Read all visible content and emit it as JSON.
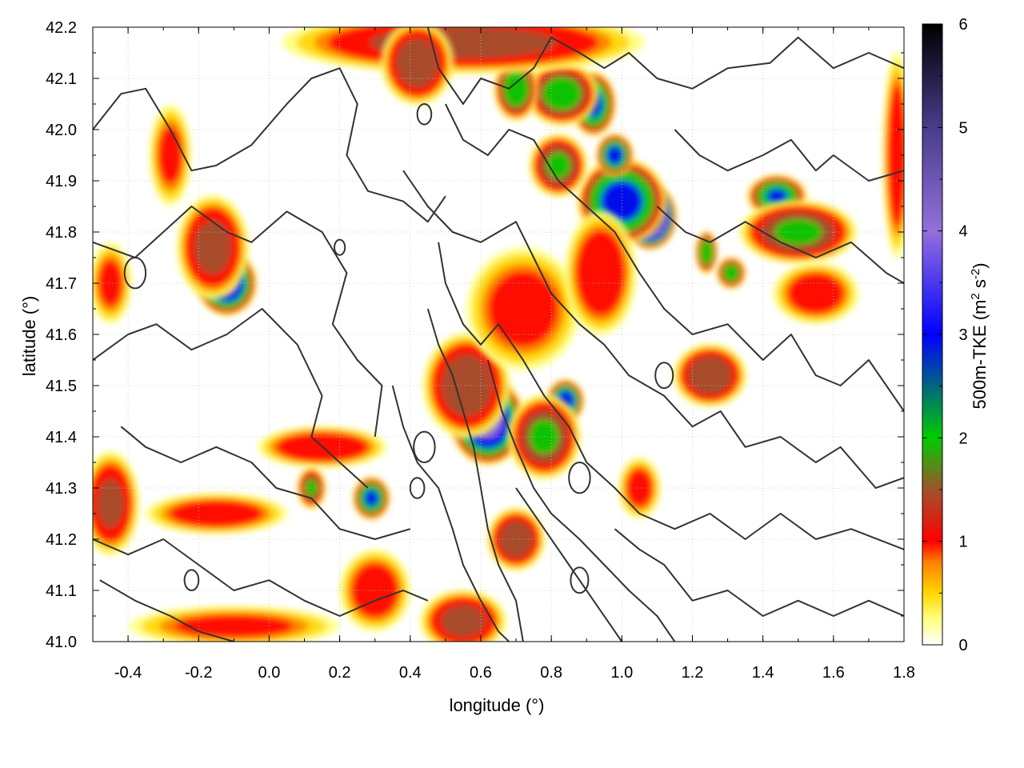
{
  "chart_data": {
    "type": "heatmap",
    "title": "",
    "xlabel": "longitude (°)",
    "ylabel": "latitude (°)",
    "colorbar_label_main": "500m-TKE (m",
    "colorbar_label_sup1": "2",
    "colorbar_label_mid": " s",
    "colorbar_label_sup2": "-2",
    "colorbar_label_end": ")",
    "xlim": [
      -0.5,
      1.8
    ],
    "ylim": [
      41.0,
      42.2
    ],
    "clim": [
      0,
      6
    ],
    "x_ticks": [
      "-0.4",
      "-0.2",
      "0.0",
      "0.2",
      "0.4",
      "0.6",
      "0.8",
      "1.0",
      "1.2",
      "1.4",
      "1.6",
      "1.8"
    ],
    "y_ticks": [
      "41.0",
      "41.1",
      "41.2",
      "41.3",
      "41.4",
      "41.5",
      "41.6",
      "41.7",
      "41.8",
      "41.9",
      "42.0",
      "42.1",
      "42.2"
    ],
    "colorbar_ticks": [
      "0",
      "1",
      "2",
      "3",
      "4",
      "5",
      "6"
    ],
    "grid": true,
    "colormap": [
      {
        "v": 0.0,
        "color": "#ffffff"
      },
      {
        "v": 0.25,
        "color": "#ffff80"
      },
      {
        "v": 0.5,
        "color": "#ffd700"
      },
      {
        "v": 0.8,
        "color": "#ff7f00"
      },
      {
        "v": 1.0,
        "color": "#ff0000"
      },
      {
        "v": 1.5,
        "color": "#a0522d"
      },
      {
        "v": 2.0,
        "color": "#00cc00"
      },
      {
        "v": 3.0,
        "color": "#0000ff"
      },
      {
        "v": 4.0,
        "color": "#9370db"
      },
      {
        "v": 5.0,
        "color": "#483d8b"
      },
      {
        "v": 6.0,
        "color": "#000000"
      }
    ],
    "hotspots": [
      {
        "lon": 1.08,
        "lat": 41.83,
        "tke": 6.0,
        "slon": 0.035,
        "slat": 0.03
      },
      {
        "lon": 1.0,
        "lat": 41.86,
        "tke": 3.4,
        "slon": 0.06,
        "slat": 0.04
      },
      {
        "lon": 0.62,
        "lat": 41.43,
        "tke": 4.3,
        "slon": 0.05,
        "slat": 0.04
      },
      {
        "lon": 0.56,
        "lat": 41.5,
        "tke": 1.8,
        "slon": 0.06,
        "slat": 0.05
      },
      {
        "lon": -0.12,
        "lat": 41.7,
        "tke": 4.0,
        "slon": 0.04,
        "slat": 0.03
      },
      {
        "lon": -0.16,
        "lat": 41.77,
        "tke": 1.6,
        "slon": 0.05,
        "slat": 0.05
      },
      {
        "lon": 0.84,
        "lat": 41.47,
        "tke": 3.5,
        "slon": 0.025,
        "slat": 0.02
      },
      {
        "lon": 0.78,
        "lat": 41.4,
        "tke": 2.0,
        "slon": 0.05,
        "slat": 0.04
      },
      {
        "lon": 0.29,
        "lat": 41.28,
        "tke": 3.1,
        "slon": 0.025,
        "slat": 0.02
      },
      {
        "lon": 0.92,
        "lat": 42.05,
        "tke": 3.2,
        "slon": 0.03,
        "slat": 0.03
      },
      {
        "lon": 0.98,
        "lat": 41.95,
        "tke": 3.3,
        "slon": 0.025,
        "slat": 0.02
      },
      {
        "lon": 0.83,
        "lat": 42.07,
        "tke": 2.3,
        "slon": 0.05,
        "slat": 0.03
      },
      {
        "lon": 0.7,
        "lat": 42.08,
        "tke": 2.5,
        "slon": 0.03,
        "slat": 0.03
      },
      {
        "lon": 0.82,
        "lat": 41.93,
        "tke": 2.0,
        "slon": 0.04,
        "slat": 0.03
      },
      {
        "lon": 1.44,
        "lat": 41.87,
        "tke": 3.0,
        "slon": 0.04,
        "slat": 0.02
      },
      {
        "lon": 1.5,
        "lat": 41.8,
        "tke": 2.0,
        "slon": 0.08,
        "slat": 0.03
      },
      {
        "lon": 1.25,
        "lat": 41.52,
        "tke": 1.9,
        "slon": 0.05,
        "slat": 0.03
      },
      {
        "lon": 1.24,
        "lat": 41.76,
        "tke": 2.6,
        "slon": 0.015,
        "slat": 0.02
      },
      {
        "lon": 1.31,
        "lat": 41.72,
        "tke": 2.4,
        "slon": 0.02,
        "slat": 0.015
      },
      {
        "lon": 0.55,
        "lat": 42.17,
        "tke": 1.6,
        "slon": 0.25,
        "slat": 0.03
      },
      {
        "lon": 0.42,
        "lat": 42.13,
        "tke": 1.8,
        "slon": 0.05,
        "slat": 0.04
      },
      {
        "lon": 0.15,
        "lat": 41.38,
        "tke": 1.4,
        "slon": 0.09,
        "slat": 0.02
      },
      {
        "lon": -0.45,
        "lat": 41.27,
        "tke": 1.5,
        "slon": 0.04,
        "slat": 0.05
      },
      {
        "lon": -0.15,
        "lat": 41.25,
        "tke": 1.2,
        "slon": 0.1,
        "slat": 0.02
      },
      {
        "lon": -0.1,
        "lat": 41.03,
        "tke": 1.0,
        "slon": 0.15,
        "slat": 0.02
      },
      {
        "lon": 0.55,
        "lat": 41.04,
        "tke": 1.6,
        "slon": 0.06,
        "slat": 0.03
      },
      {
        "lon": 0.3,
        "lat": 41.1,
        "tke": 1.2,
        "slon": 0.05,
        "slat": 0.04
      },
      {
        "lon": 0.72,
        "lat": 41.65,
        "tke": 1.1,
        "slon": 0.08,
        "slat": 0.06
      },
      {
        "lon": 0.94,
        "lat": 41.72,
        "tke": 1.3,
        "slon": 0.05,
        "slat": 0.06
      },
      {
        "lon": 1.78,
        "lat": 41.95,
        "tke": 1.3,
        "slon": 0.02,
        "slat": 0.1
      },
      {
        "lon": -0.28,
        "lat": 41.95,
        "tke": 1.0,
        "slon": 0.03,
        "slat": 0.05
      },
      {
        "lon": -0.45,
        "lat": 41.7,
        "tke": 1.0,
        "slon": 0.03,
        "slat": 0.04
      },
      {
        "lon": 0.12,
        "lat": 41.3,
        "tke": 2.0,
        "slon": 0.02,
        "slat": 0.02
      },
      {
        "lon": 0.7,
        "lat": 41.2,
        "tke": 1.8,
        "slon": 0.04,
        "slat": 0.03
      },
      {
        "lon": 1.55,
        "lat": 41.68,
        "tke": 1.2,
        "slon": 0.06,
        "slat": 0.03
      },
      {
        "lon": 1.05,
        "lat": 41.3,
        "tke": 1.1,
        "slon": 0.03,
        "slat": 0.03
      }
    ],
    "contours": [
      [
        [
          -0.5,
          42.0
        ],
        [
          -0.42,
          42.07
        ],
        [
          -0.35,
          42.08
        ],
        [
          -0.28,
          42.0
        ],
        [
          -0.22,
          41.92
        ],
        [
          -0.15,
          41.93
        ],
        [
          -0.05,
          41.97
        ],
        [
          0.05,
          42.05
        ],
        [
          0.12,
          42.1
        ],
        [
          0.2,
          42.12
        ],
        [
          0.25,
          42.05
        ],
        [
          0.22,
          41.95
        ],
        [
          0.28,
          41.88
        ],
        [
          0.38,
          41.86
        ],
        [
          0.45,
          41.82
        ],
        [
          0.5,
          41.87
        ]
      ],
      [
        [
          -0.5,
          41.78
        ],
        [
          -0.38,
          41.75
        ],
        [
          -0.3,
          41.8
        ],
        [
          -0.22,
          41.85
        ],
        [
          -0.12,
          41.8
        ],
        [
          -0.05,
          41.78
        ],
        [
          0.05,
          41.84
        ],
        [
          0.15,
          41.8
        ],
        [
          0.22,
          41.72
        ],
        [
          0.18,
          41.62
        ],
        [
          0.25,
          41.55
        ],
        [
          0.32,
          41.5
        ],
        [
          0.3,
          41.4
        ]
      ],
      [
        [
          -0.5,
          41.55
        ],
        [
          -0.4,
          41.6
        ],
        [
          -0.32,
          41.62
        ],
        [
          -0.22,
          41.57
        ],
        [
          -0.12,
          41.6
        ],
        [
          -0.02,
          41.65
        ],
        [
          0.08,
          41.58
        ],
        [
          0.15,
          41.48
        ],
        [
          0.12,
          41.4
        ],
        [
          0.2,
          41.35
        ],
        [
          0.28,
          41.3
        ]
      ],
      [
        [
          -0.42,
          41.42
        ],
        [
          -0.35,
          41.38
        ],
        [
          -0.25,
          41.35
        ],
        [
          -0.15,
          41.38
        ],
        [
          -0.05,
          41.35
        ],
        [
          0.02,
          41.3
        ],
        [
          0.12,
          41.28
        ],
        [
          0.2,
          41.22
        ],
        [
          0.3,
          41.2
        ],
        [
          0.4,
          41.22
        ]
      ],
      [
        [
          -0.5,
          41.2
        ],
        [
          -0.4,
          41.17
        ],
        [
          -0.3,
          41.2
        ],
        [
          -0.2,
          41.15
        ],
        [
          -0.1,
          41.1
        ],
        [
          0.0,
          41.12
        ],
        [
          0.1,
          41.08
        ],
        [
          0.2,
          41.05
        ],
        [
          0.3,
          41.08
        ],
        [
          0.38,
          41.1
        ],
        [
          0.45,
          41.08
        ]
      ],
      [
        [
          -0.48,
          41.12
        ],
        [
          -0.38,
          41.08
        ],
        [
          -0.28,
          41.05
        ],
        [
          -0.2,
          41.02
        ],
        [
          -0.1,
          41.0
        ]
      ],
      [
        [
          0.45,
          42.2
        ],
        [
          0.48,
          42.12
        ],
        [
          0.55,
          42.05
        ],
        [
          0.6,
          42.1
        ],
        [
          0.68,
          42.08
        ],
        [
          0.75,
          42.12
        ],
        [
          0.8,
          42.18
        ],
        [
          0.88,
          42.15
        ],
        [
          0.95,
          42.12
        ],
        [
          1.02,
          42.15
        ],
        [
          1.1,
          42.1
        ],
        [
          1.2,
          42.08
        ],
        [
          1.3,
          42.12
        ],
        [
          1.42,
          42.13
        ],
        [
          1.5,
          42.18
        ],
        [
          1.6,
          42.12
        ],
        [
          1.7,
          42.15
        ],
        [
          1.8,
          42.12
        ]
      ],
      [
        [
          0.5,
          42.05
        ],
        [
          0.55,
          41.98
        ],
        [
          0.62,
          41.95
        ],
        [
          0.68,
          42.0
        ],
        [
          0.75,
          41.98
        ],
        [
          0.82,
          41.9
        ],
        [
          0.9,
          41.85
        ],
        [
          0.98,
          41.8
        ],
        [
          1.05,
          41.72
        ],
        [
          1.12,
          41.65
        ],
        [
          1.2,
          41.6
        ],
        [
          1.3,
          41.62
        ],
        [
          1.4,
          41.55
        ],
        [
          1.48,
          41.6
        ],
        [
          1.55,
          41.52
        ],
        [
          1.62,
          41.5
        ],
        [
          1.7,
          41.55
        ],
        [
          1.8,
          41.45
        ]
      ],
      [
        [
          0.38,
          41.92
        ],
        [
          0.45,
          41.85
        ],
        [
          0.52,
          41.8
        ],
        [
          0.6,
          41.78
        ],
        [
          0.7,
          41.82
        ],
        [
          0.75,
          41.75
        ],
        [
          0.8,
          41.68
        ],
        [
          0.88,
          41.62
        ],
        [
          0.95,
          41.58
        ],
        [
          1.02,
          41.52
        ],
        [
          1.12,
          41.48
        ],
        [
          1.2,
          41.42
        ],
        [
          1.28,
          41.45
        ],
        [
          1.35,
          41.38
        ],
        [
          1.45,
          41.4
        ],
        [
          1.55,
          41.35
        ],
        [
          1.62,
          41.38
        ],
        [
          1.72,
          41.3
        ],
        [
          1.8,
          41.32
        ]
      ],
      [
        [
          0.48,
          41.78
        ],
        [
          0.5,
          41.7
        ],
        [
          0.55,
          41.62
        ],
        [
          0.6,
          41.58
        ],
        [
          0.65,
          41.62
        ],
        [
          0.72,
          41.55
        ],
        [
          0.78,
          41.48
        ],
        [
          0.85,
          41.42
        ],
        [
          0.9,
          41.35
        ],
        [
          0.98,
          41.3
        ],
        [
          1.05,
          41.25
        ],
        [
          1.15,
          41.22
        ],
        [
          1.25,
          41.25
        ],
        [
          1.35,
          41.2
        ],
        [
          1.45,
          41.25
        ],
        [
          1.55,
          41.2
        ],
        [
          1.65,
          41.22
        ],
        [
          1.8,
          41.18
        ]
      ],
      [
        [
          0.62,
          41.55
        ],
        [
          0.66,
          41.45
        ],
        [
          0.7,
          41.38
        ],
        [
          0.75,
          41.3
        ],
        [
          0.8,
          41.25
        ],
        [
          0.88,
          41.2
        ],
        [
          0.95,
          41.15
        ],
        [
          1.02,
          41.1
        ],
        [
          1.1,
          41.05
        ],
        [
          1.15,
          41.0
        ]
      ],
      [
        [
          0.7,
          41.3
        ],
        [
          0.78,
          41.22
        ],
        [
          0.85,
          41.15
        ],
        [
          0.92,
          41.08
        ],
        [
          0.98,
          41.02
        ],
        [
          1.0,
          41.0
        ]
      ],
      [
        [
          0.98,
          41.22
        ],
        [
          1.05,
          41.18
        ],
        [
          1.12,
          41.15
        ],
        [
          1.2,
          41.08
        ],
        [
          1.3,
          41.1
        ],
        [
          1.4,
          41.05
        ],
        [
          1.5,
          41.08
        ],
        [
          1.6,
          41.05
        ],
        [
          1.7,
          41.08
        ],
        [
          1.8,
          41.05
        ]
      ],
      [
        [
          0.35,
          41.5
        ],
        [
          0.38,
          41.42
        ],
        [
          0.42,
          41.35
        ],
        [
          0.48,
          41.3
        ],
        [
          0.52,
          41.22
        ],
        [
          0.55,
          41.15
        ],
        [
          0.6,
          41.08
        ],
        [
          0.65,
          41.02
        ],
        [
          0.68,
          41.0
        ]
      ],
      [
        [
          0.45,
          41.65
        ],
        [
          0.48,
          41.58
        ],
        [
          0.52,
          41.52
        ],
        [
          0.55,
          41.45
        ],
        [
          0.58,
          41.38
        ],
        [
          0.6,
          41.3
        ],
        [
          0.62,
          41.22
        ],
        [
          0.65,
          41.15
        ],
        [
          0.7,
          41.08
        ],
        [
          0.72,
          41.0
        ]
      ],
      [
        [
          1.15,
          42.0
        ],
        [
          1.22,
          41.95
        ],
        [
          1.3,
          41.92
        ],
        [
          1.4,
          41.95
        ],
        [
          1.48,
          41.98
        ],
        [
          1.55,
          41.92
        ],
        [
          1.6,
          41.95
        ],
        [
          1.7,
          41.9
        ],
        [
          1.8,
          41.92
        ]
      ],
      [
        [
          1.1,
          41.85
        ],
        [
          1.18,
          41.8
        ],
        [
          1.25,
          41.78
        ],
        [
          1.35,
          41.82
        ],
        [
          1.45,
          41.78
        ],
        [
          1.55,
          41.75
        ],
        [
          1.65,
          41.78
        ],
        [
          1.75,
          41.72
        ],
        [
          1.8,
          41.7
        ]
      ]
    ],
    "small_contours": [
      {
        "lon": 0.42,
        "lat": 41.3,
        "r": 0.02
      },
      {
        "lon": 0.88,
        "lat": 41.12,
        "r": 0.025
      },
      {
        "lon": -0.22,
        "lat": 41.12,
        "r": 0.02
      },
      {
        "lon": -0.38,
        "lat": 41.72,
        "r": 0.03
      },
      {
        "lon": 0.2,
        "lat": 41.77,
        "r": 0.015
      },
      {
        "lon": 0.44,
        "lat": 41.38,
        "r": 0.03
      },
      {
        "lon": 0.88,
        "lat": 41.32,
        "r": 0.03
      },
      {
        "lon": 1.12,
        "lat": 41.52,
        "r": 0.025
      },
      {
        "lon": 0.44,
        "lat": 42.03,
        "r": 0.02
      }
    ]
  }
}
